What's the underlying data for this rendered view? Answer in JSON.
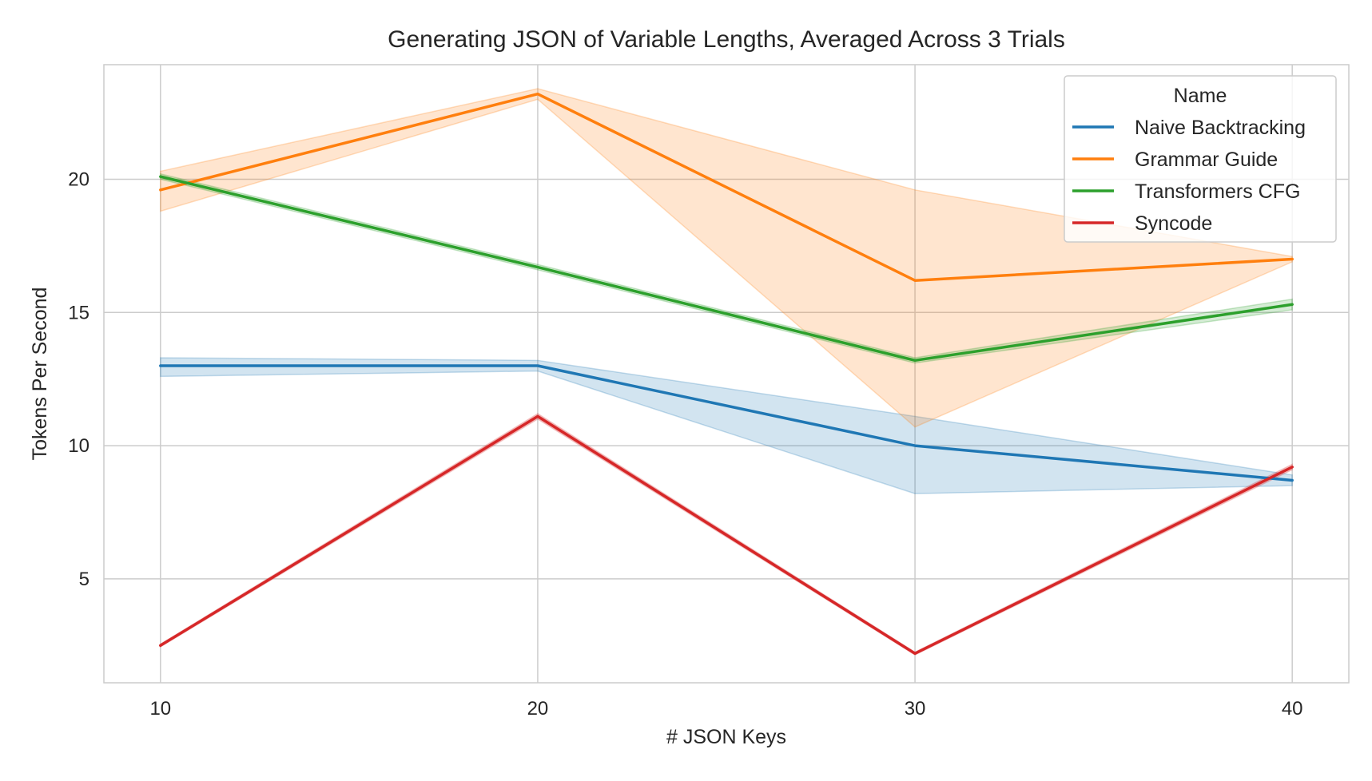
{
  "chart_data": {
    "type": "line",
    "title": "Generating JSON of Variable Lengths, Averaged Across 3 Trials",
    "xlabel": "# JSON Keys",
    "ylabel": "Tokens Per Second",
    "x": [
      10,
      20,
      30,
      40
    ],
    "xlim": [
      8.5,
      41.5
    ],
    "ylim": [
      1.1,
      24.3
    ],
    "xticks": [
      10,
      20,
      30,
      40
    ],
    "yticks": [
      5,
      10,
      15,
      20
    ],
    "grid": true,
    "legend": {
      "title": "Name",
      "placement": "top-right"
    },
    "series": [
      {
        "name": "Naive Backtracking",
        "color": "#1f77b4",
        "values": [
          13.0,
          13.0,
          10.0,
          8.7
        ],
        "ci_low": [
          12.6,
          12.8,
          8.2,
          8.5
        ],
        "ci_high": [
          13.3,
          13.2,
          11.1,
          8.9
        ]
      },
      {
        "name": "Grammar Guide",
        "color": "#ff7f0e",
        "values": [
          19.6,
          23.2,
          16.2,
          17.0
        ],
        "ci_low": [
          18.8,
          23.0,
          10.7,
          16.9
        ],
        "ci_high": [
          20.3,
          23.4,
          19.6,
          17.1
        ]
      },
      {
        "name": "Transformers CFG",
        "color": "#2ca02c",
        "values": [
          20.1,
          16.7,
          13.2,
          15.3
        ],
        "ci_low": [
          20.0,
          16.6,
          13.1,
          15.1
        ],
        "ci_high": [
          20.2,
          16.8,
          13.3,
          15.5
        ]
      },
      {
        "name": "Syncode",
        "color": "#d62728",
        "values": [
          2.5,
          11.1,
          2.2,
          9.2
        ],
        "ci_low": [
          2.45,
          11.0,
          2.15,
          9.1
        ],
        "ci_high": [
          2.55,
          11.2,
          2.25,
          9.3
        ]
      }
    ]
  }
}
